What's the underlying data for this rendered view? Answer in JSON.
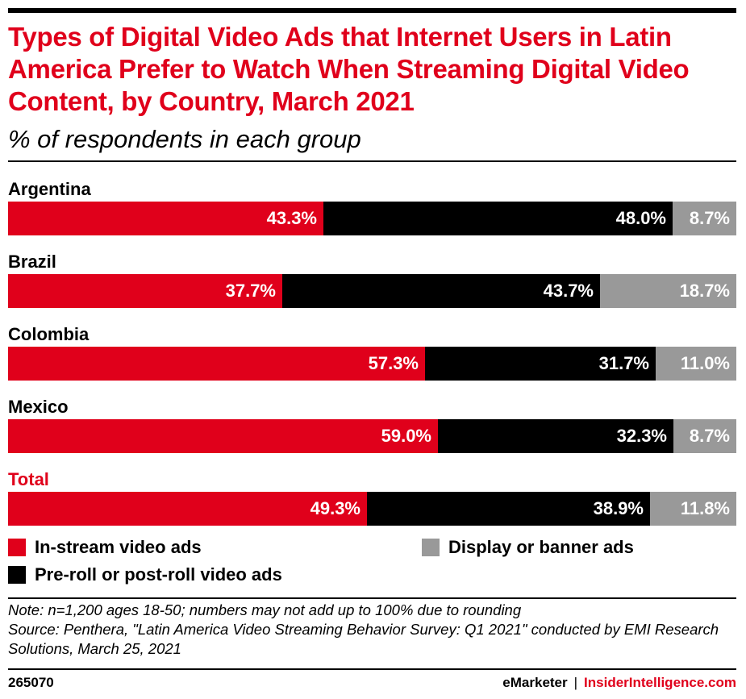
{
  "header": {
    "title": "Types of Digital Video Ads that Internet Users in Latin America Prefer to Watch When Streaming Digital Video Content, by Country, March 2021",
    "subtitle": "% of respondents in each group"
  },
  "chart_data": {
    "type": "bar",
    "stacked": true,
    "orientation": "horizontal",
    "normalized_to_100": true,
    "title": "Types of Digital Video Ads that Internet Users in Latin America Prefer to Watch When Streaming Digital Video Content, by Country, March 2021",
    "subtitle": "% of respondents in each group",
    "categories": [
      "Argentina",
      "Brazil",
      "Colombia",
      "Mexico",
      "Total"
    ],
    "series": [
      {
        "name": "In-stream video ads",
        "color": "#e0001b",
        "values": [
          43.3,
          37.7,
          57.3,
          59.0,
          49.3
        ]
      },
      {
        "name": "Pre-roll or post-roll video ads",
        "color": "#000000",
        "values": [
          48.0,
          43.7,
          31.7,
          32.3,
          38.9
        ]
      },
      {
        "name": "Display or banner ads",
        "color": "#999999",
        "values": [
          8.7,
          18.7,
          11.0,
          8.7,
          11.8
        ]
      }
    ],
    "value_labels": [
      [
        "43.3%",
        "48.0%",
        "8.7%"
      ],
      [
        "37.7%",
        "43.7%",
        "18.7%"
      ],
      [
        "57.3%",
        "31.7%",
        "11.0%"
      ],
      [
        "59.0%",
        "32.3%",
        "8.7%"
      ],
      [
        "49.3%",
        "38.9%",
        "11.8%"
      ]
    ],
    "highlighted_category": "Total",
    "legend": "bottom"
  },
  "footer": {
    "note": "Note: n=1,200 ages 18-50; numbers may not add up to 100% due to rounding",
    "source": "Source: Penthera, \"Latin America Video Streaming Behavior Survey: Q1 2021\" conducted by EMI Research Solutions, March 25, 2021",
    "chart_id": "265070",
    "brand_left": "eMarketer",
    "separator": "|",
    "brand_right": "InsiderIntelligence.com"
  }
}
